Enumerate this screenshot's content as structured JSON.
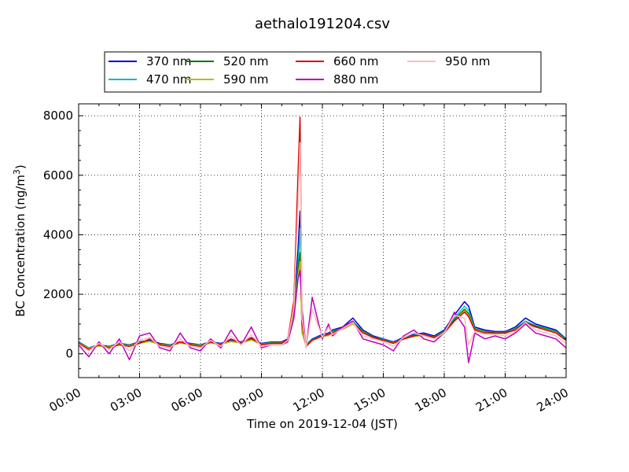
{
  "chart_data": {
    "type": "line",
    "title": "aethalo191204.csv",
    "xlabel": "Time on 2019-12-04 (JST)",
    "ylabel_main": "BC Concentration (ng/m",
    "ylabel_sup": "3",
    "ylabel_close": ")",
    "xlim": [
      0,
      24
    ],
    "ylim": [
      -800,
      8400
    ],
    "x_ticks": [
      0,
      3,
      6,
      9,
      12,
      15,
      18,
      21,
      24
    ],
    "x_tick_labels": [
      "00:00",
      "03:00",
      "06:00",
      "09:00",
      "12:00",
      "15:00",
      "18:00",
      "21:00",
      "24:00"
    ],
    "y_ticks": [
      0,
      2000,
      4000,
      6000,
      8000
    ],
    "y_tick_labels": [
      "0",
      "2000",
      "4000",
      "6000",
      "8000"
    ],
    "grid": true,
    "legend_position": "top",
    "x_hours": [
      0.0,
      0.5,
      1.0,
      1.5,
      2.0,
      2.5,
      3.0,
      3.5,
      4.0,
      4.5,
      5.0,
      5.5,
      6.0,
      6.5,
      7.0,
      7.5,
      8.0,
      8.5,
      9.0,
      9.5,
      10.0,
      10.3,
      10.6,
      10.8,
      10.9,
      11.0,
      11.2,
      11.5,
      12.0,
      12.3,
      12.5,
      13.0,
      13.5,
      14.0,
      14.5,
      15.0,
      15.5,
      16.0,
      16.5,
      17.0,
      17.5,
      18.0,
      18.5,
      19.0,
      19.2,
      19.5,
      20.0,
      20.5,
      21.0,
      21.5,
      22.0,
      22.5,
      23.0,
      23.5,
      24.0
    ],
    "series": [
      {
        "name": "370 nm",
        "color": "#0000cc",
        "values": [
          400,
          200,
          300,
          250,
          350,
          300,
          400,
          450,
          350,
          300,
          400,
          350,
          300,
          400,
          350,
          450,
          400,
          500,
          350,
          400,
          400,
          500,
          1500,
          3500,
          4800,
          800,
          300,
          500,
          650,
          700,
          800,
          900,
          1200,
          800,
          600,
          500,
          400,
          550,
          650,
          700,
          600,
          800,
          1300,
          1750,
          1600,
          900,
          800,
          750,
          750,
          900,
          1200,
          1000,
          900,
          800,
          500
        ]
      },
      {
        "name": "470 nm",
        "color": "#00bbcc",
        "values": [
          380,
          200,
          280,
          240,
          330,
          290,
          380,
          430,
          330,
          290,
          380,
          330,
          290,
          380,
          330,
          430,
          380,
          480,
          330,
          380,
          380,
          480,
          1400,
          3000,
          4200,
          750,
          290,
          480,
          620,
          650,
          760,
          860,
          1100,
          760,
          570,
          480,
          380,
          520,
          620,
          660,
          570,
          760,
          1200,
          1600,
          1450,
          860,
          760,
          720,
          720,
          860,
          1100,
          950,
          860,
          760,
          480
        ]
      },
      {
        "name": "520 nm",
        "color": "#007700",
        "values": [
          370,
          190,
          270,
          230,
          320,
          280,
          370,
          420,
          320,
          280,
          370,
          320,
          280,
          370,
          320,
          420,
          370,
          470,
          320,
          370,
          370,
          470,
          1350,
          2800,
          3400,
          720,
          280,
          460,
          600,
          630,
          740,
          840,
          1050,
          740,
          560,
          460,
          370,
          500,
          600,
          640,
          560,
          740,
          1150,
          1500,
          1350,
          840,
          740,
          700,
          700,
          840,
          1050,
          930,
          840,
          740,
          460
        ]
      },
      {
        "name": "590 nm",
        "color": "#bbbb00",
        "values": [
          360,
          180,
          260,
          220,
          310,
          270,
          360,
          410,
          310,
          270,
          360,
          310,
          270,
          360,
          310,
          410,
          360,
          460,
          310,
          360,
          360,
          460,
          1300,
          2600,
          3100,
          700,
          270,
          450,
          580,
          610,
          720,
          820,
          1000,
          720,
          540,
          450,
          360,
          490,
          580,
          620,
          540,
          720,
          1100,
          1450,
          1300,
          820,
          720,
          680,
          680,
          820,
          1000,
          900,
          820,
          720,
          450
        ]
      },
      {
        "name": "660 nm",
        "color": "#dd0000",
        "values": [
          350,
          150,
          300,
          200,
          300,
          250,
          350,
          500,
          300,
          250,
          400,
          300,
          250,
          400,
          300,
          500,
          350,
          550,
          300,
          350,
          350,
          500,
          1800,
          6000,
          7950,
          1000,
          250,
          450,
          600,
          650,
          700,
          850,
          1050,
          700,
          550,
          450,
          350,
          500,
          600,
          650,
          550,
          700,
          1100,
          1400,
          1250,
          800,
          700,
          700,
          700,
          800,
          1050,
          900,
          800,
          700,
          450
        ]
      },
      {
        "name": "880 nm",
        "color": "#bb00bb",
        "values": [
          300,
          -100,
          400,
          0,
          500,
          -200,
          600,
          700,
          200,
          100,
          700,
          200,
          100,
          500,
          200,
          800,
          300,
          900,
          200,
          300,
          300,
          400,
          1200,
          2500,
          2800,
          1500,
          200,
          1900,
          500,
          1000,
          600,
          900,
          1100,
          500,
          400,
          300,
          100,
          600,
          800,
          500,
          400,
          700,
          1400,
          900,
          -300,
          700,
          500,
          600,
          500,
          700,
          1000,
          700,
          600,
          500,
          200
        ]
      },
      {
        "name": "950 nm",
        "color": "#ffbbbb",
        "values": [
          320,
          100,
          350,
          150,
          400,
          100,
          450,
          550,
          250,
          200,
          500,
          250,
          200,
          450,
          250,
          600,
          300,
          650,
          250,
          300,
          300,
          450,
          1600,
          5000,
          7100,
          1200,
          200,
          1500,
          550,
          900,
          650,
          850,
          1050,
          600,
          500,
          400,
          250,
          550,
          700,
          600,
          500,
          700,
          1300,
          1200,
          300,
          750,
          650,
          650,
          600,
          750,
          1050,
          800,
          700,
          600,
          350
        ]
      }
    ]
  }
}
